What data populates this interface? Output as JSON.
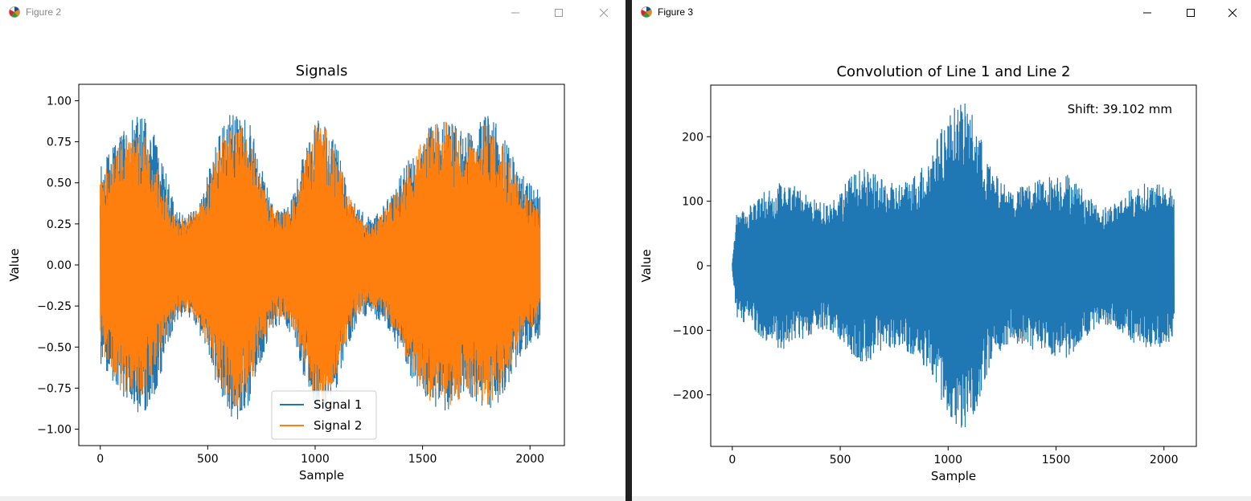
{
  "windows": [
    {
      "title": "Figure 2",
      "controls": {
        "minimize": "minimize-icon",
        "maximize": "maximize-icon",
        "close": "close-icon"
      }
    },
    {
      "title": "Figure 3",
      "controls": {
        "minimize": "minimize-icon",
        "maximize": "maximize-icon",
        "close": "close-icon"
      }
    }
  ],
  "chart_data": [
    {
      "type": "line",
      "title": "Signals",
      "xlabel": "Sample",
      "ylabel": "Value",
      "xlim": [
        -100,
        2160
      ],
      "ylim": [
        -1.1,
        1.1
      ],
      "xticks": [
        0,
        500,
        1000,
        1500,
        2000
      ],
      "yticks": [
        -1.0,
        -0.75,
        -0.5,
        -0.25,
        0.0,
        0.25,
        0.5,
        0.75,
        1.0
      ],
      "ytick_labels": [
        "−1.00",
        "−0.75",
        "−0.50",
        "−0.25",
        "0.00",
        "0.25",
        "0.50",
        "0.75",
        "1.00"
      ],
      "grid": false,
      "legend": "lower-center",
      "series": [
        {
          "name": "Signal 1",
          "color": "#1f77b4",
          "x_range": [
            0,
            2048
          ],
          "envelope_x": [
            0,
            50,
            100,
            150,
            200,
            250,
            300,
            350,
            400,
            450,
            500,
            550,
            600,
            650,
            700,
            750,
            800,
            850,
            900,
            950,
            1000,
            1050,
            1100,
            1150,
            1200,
            1250,
            1300,
            1350,
            1400,
            1450,
            1500,
            1550,
            1600,
            1650,
            1700,
            1750,
            1800,
            1850,
            1900,
            1950,
            2000,
            2048
          ],
          "envelope_y": [
            0.6,
            0.7,
            0.8,
            0.9,
            0.92,
            0.8,
            0.6,
            0.35,
            0.3,
            0.38,
            0.55,
            0.78,
            0.92,
            0.95,
            0.85,
            0.6,
            0.4,
            0.35,
            0.45,
            0.7,
            0.88,
            0.9,
            0.75,
            0.5,
            0.35,
            0.3,
            0.35,
            0.42,
            0.55,
            0.7,
            0.82,
            0.88,
            0.9,
            0.85,
            0.8,
            0.85,
            0.92,
            0.85,
            0.72,
            0.6,
            0.5,
            0.45
          ]
        },
        {
          "name": "Signal 2",
          "color": "#ff7f0e",
          "x_range": [
            0,
            2048
          ],
          "envelope_x": [
            0,
            50,
            100,
            150,
            200,
            250,
            300,
            350,
            400,
            450,
            500,
            550,
            600,
            650,
            700,
            750,
            800,
            850,
            900,
            950,
            1000,
            1050,
            1100,
            1150,
            1200,
            1250,
            1300,
            1350,
            1400,
            1450,
            1500,
            1550,
            1600,
            1650,
            1700,
            1750,
            1800,
            1850,
            1900,
            1950,
            2000,
            2048
          ],
          "envelope_y": [
            0.5,
            0.65,
            0.78,
            0.82,
            0.8,
            0.65,
            0.45,
            0.3,
            0.28,
            0.35,
            0.5,
            0.72,
            0.85,
            0.88,
            0.75,
            0.5,
            0.35,
            0.32,
            0.4,
            0.65,
            0.85,
            0.85,
            0.68,
            0.45,
            0.3,
            0.25,
            0.3,
            0.38,
            0.5,
            0.65,
            0.78,
            0.85,
            0.88,
            0.85,
            0.8,
            0.82,
            0.88,
            0.8,
            0.65,
            0.5,
            0.4,
            0.35
          ]
        }
      ]
    },
    {
      "type": "line",
      "title": "Convolution of Line 1 and Line 2",
      "xlabel": "Sample",
      "ylabel": "Value",
      "xlim": [
        -100,
        2150
      ],
      "ylim": [
        -280,
        280
      ],
      "xticks": [
        0,
        500,
        1000,
        1500,
        2000
      ],
      "yticks": [
        -200,
        -100,
        0,
        100,
        200
      ],
      "ytick_labels": [
        "−200",
        "−100",
        "0",
        "100",
        "200"
      ],
      "grid": false,
      "annotation": "Shift: 39.102 mm",
      "series": [
        {
          "color": "#1f77b4",
          "x_range": [
            0,
            2048
          ],
          "envelope_x": [
            0,
            20,
            60,
            100,
            150,
            200,
            250,
            300,
            350,
            400,
            450,
            500,
            550,
            600,
            650,
            700,
            750,
            800,
            850,
            900,
            950,
            1000,
            1050,
            1090,
            1130,
            1160,
            1200,
            1250,
            1300,
            1350,
            1400,
            1450,
            1500,
            1550,
            1600,
            1650,
            1700,
            1750,
            1800,
            1850,
            1900,
            1950,
            2000,
            2048
          ],
          "envelope_y": [
            5,
            80,
            90,
            100,
            115,
            128,
            130,
            122,
            110,
            100,
            102,
            118,
            140,
            152,
            145,
            132,
            128,
            132,
            145,
            165,
            200,
            235,
            255,
            250,
            225,
            190,
            150,
            130,
            120,
            125,
            132,
            138,
            145,
            145,
            130,
            108,
            92,
            95,
            108,
            120,
            128,
            128,
            125,
            118
          ]
        }
      ]
    }
  ]
}
